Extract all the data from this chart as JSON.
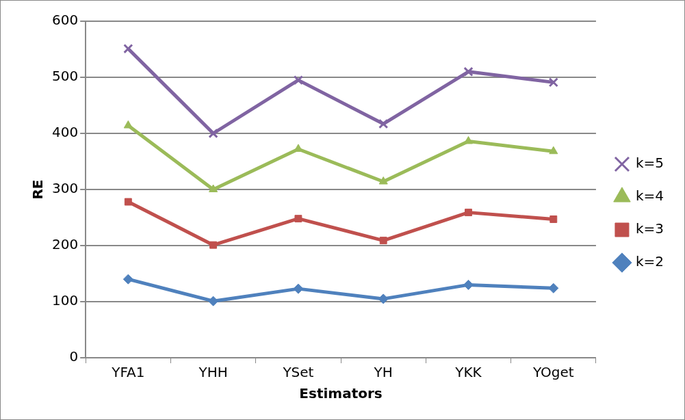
{
  "chart_data": {
    "type": "line",
    "xlabel": "Estimators",
    "ylabel": "RE",
    "categories": [
      "YFA1",
      "YHH",
      "YSet",
      "YH",
      "YKK",
      "YOget"
    ],
    "series": [
      {
        "name": "k=5",
        "color": "#8064a2",
        "marker": "cross",
        "values": [
          551,
          400,
          495,
          417,
          510,
          491
        ]
      },
      {
        "name": "k=4",
        "color": "#9bbb59",
        "marker": "triangle",
        "values": [
          414,
          300,
          372,
          314,
          386,
          368
        ]
      },
      {
        "name": "k=3",
        "color": "#c0504d",
        "marker": "square",
        "values": [
          278,
          201,
          248,
          209,
          259,
          247
        ]
      },
      {
        "name": "k=2",
        "color": "#4f81bd",
        "marker": "diamond",
        "values": [
          140,
          101,
          123,
          105,
          130,
          124
        ]
      }
    ],
    "ylim": [
      0,
      600
    ],
    "yticks": [
      0,
      100,
      200,
      300,
      400,
      500,
      600
    ],
    "grid": "y",
    "legend": "right",
    "line_style": "solid"
  }
}
